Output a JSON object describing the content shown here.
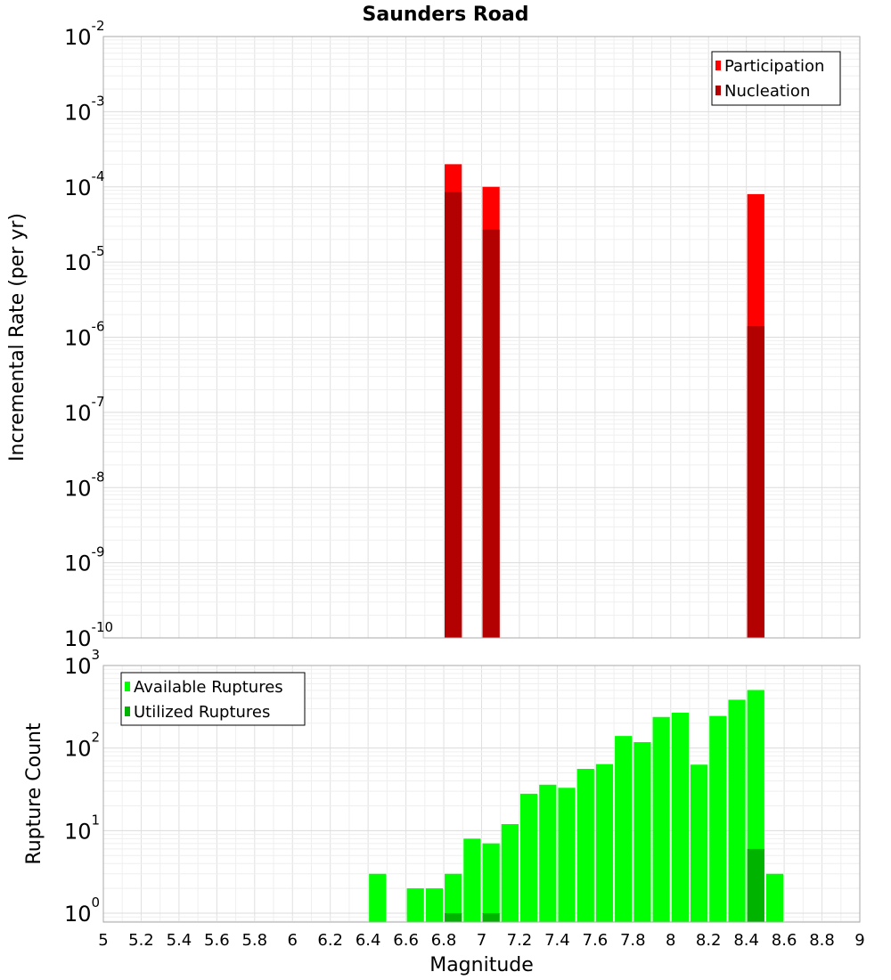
{
  "chart_data": [
    {
      "type": "bar",
      "title": "Saunders Road",
      "ylabel": "Incremental Rate (per yr)",
      "xlabel": "",
      "xlim": [
        5,
        9
      ],
      "ylim": [
        1e-10,
        0.01
      ],
      "yscale": "log",
      "y_ticks": [
        "10^-10",
        "10^-9",
        "10^-8",
        "10^-7",
        "10^-6",
        "10^-5",
        "10^-4",
        "10^-3",
        "10^-2"
      ],
      "bin_width": 0.1,
      "grid": true,
      "legend_position": "top-right",
      "series": [
        {
          "name": "Participation",
          "color": "#ff0000",
          "points": [
            {
              "x": 6.85,
              "y": 0.0002
            },
            {
              "x": 7.05,
              "y": 0.0001
            },
            {
              "x": 8.45,
              "y": 8e-05
            }
          ]
        },
        {
          "name": "Nucleation",
          "color": "#b30000",
          "points": [
            {
              "x": 6.85,
              "y": 8.5e-05
            },
            {
              "x": 7.05,
              "y": 2.7e-05
            },
            {
              "x": 8.45,
              "y": 1.4e-06
            }
          ]
        }
      ]
    },
    {
      "type": "bar",
      "title": "",
      "ylabel": "Rupture Count",
      "xlabel": "Magnitude",
      "xlim": [
        5,
        9
      ],
      "ylim": [
        0.78,
        1000
      ],
      "yscale": "log",
      "y_ticks": [
        "10^0",
        "10^1",
        "10^2",
        "10^3"
      ],
      "x_ticks": [
        "5",
        "5.2",
        "5.4",
        "5.6",
        "5.8",
        "6",
        "6.2",
        "6.4",
        "6.6",
        "6.8",
        "7",
        "7.2",
        "7.4",
        "7.6",
        "7.8",
        "8",
        "8.2",
        "8.4",
        "8.6",
        "8.8",
        "9"
      ],
      "bin_width": 0.1,
      "grid": true,
      "legend_position": "top-left",
      "series": [
        {
          "name": "Available Ruptures",
          "color": "#00ff00",
          "points": [
            {
              "x": 6.45,
              "y": 3
            },
            {
              "x": 6.65,
              "y": 2
            },
            {
              "x": 6.75,
              "y": 2
            },
            {
              "x": 6.85,
              "y": 3
            },
            {
              "x": 6.95,
              "y": 8
            },
            {
              "x": 7.05,
              "y": 7
            },
            {
              "x": 7.15,
              "y": 12
            },
            {
              "x": 7.25,
              "y": 28
            },
            {
              "x": 7.35,
              "y": 36
            },
            {
              "x": 7.45,
              "y": 33
            },
            {
              "x": 7.55,
              "y": 56
            },
            {
              "x": 7.65,
              "y": 64
            },
            {
              "x": 7.75,
              "y": 140
            },
            {
              "x": 7.85,
              "y": 118
            },
            {
              "x": 7.95,
              "y": 238
            },
            {
              "x": 8.05,
              "y": 268
            },
            {
              "x": 8.15,
              "y": 63
            },
            {
              "x": 8.25,
              "y": 245
            },
            {
              "x": 8.35,
              "y": 385
            },
            {
              "x": 8.45,
              "y": 505
            },
            {
              "x": 8.55,
              "y": 3
            }
          ]
        },
        {
          "name": "Utilized Ruptures",
          "color": "#00b300",
          "points": [
            {
              "x": 6.85,
              "y": 1
            },
            {
              "x": 7.05,
              "y": 1
            },
            {
              "x": 8.45,
              "y": 6
            }
          ]
        }
      ]
    }
  ]
}
